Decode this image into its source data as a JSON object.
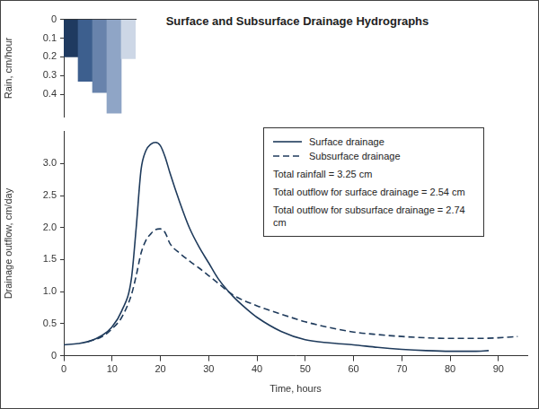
{
  "chart_data": [
    {
      "type": "bar",
      "y_label": "Rain, cm/hour",
      "categories": [
        null,
        null,
        null,
        null,
        null
      ],
      "values": [
        0.2,
        0.33,
        0.39,
        0.5,
        0.21
      ],
      "colors": [
        "#1f3a60",
        "#3d5f8e",
        "#6883ac",
        "#8fa5c6",
        "#cdd7e6"
      ],
      "ylim": [
        0,
        0.52
      ],
      "yticks": [
        0,
        0.1,
        0.2,
        0.3,
        0.4
      ],
      "grid": false,
      "tick_labels": "y"
    },
    {
      "type": "line",
      "title": "Surface and Subsurface Drainage Hydrographs",
      "x_label": "Time, hours",
      "y_label": "Drainage outflow, cm/day",
      "series": [
        {
          "name": "Surface drainage",
          "color": "#1f3b5c",
          "line_style": "solid",
          "x": [
            0,
            3,
            5,
            8,
            10,
            12,
            14,
            15,
            16,
            17,
            18,
            19,
            20,
            21,
            22,
            24,
            26,
            28,
            30,
            32,
            35,
            38,
            40,
            45,
            50,
            55,
            60,
            65,
            70,
            75,
            80,
            85,
            88
          ],
          "values": [
            0.17,
            0.19,
            0.22,
            0.32,
            0.45,
            0.7,
            1.2,
            2.0,
            2.9,
            3.2,
            3.3,
            3.33,
            3.28,
            3.1,
            2.85,
            2.4,
            2.0,
            1.7,
            1.45,
            1.2,
            0.93,
            0.72,
            0.6,
            0.38,
            0.25,
            0.2,
            0.17,
            0.13,
            0.1,
            0.08,
            0.07,
            0.07,
            0.08
          ]
        },
        {
          "name": "Subsurface drainage",
          "color": "#1f3b5c",
          "line_style": "dashed",
          "x": [
            5,
            8,
            10,
            12,
            14,
            15,
            16,
            17,
            18,
            19,
            20,
            21,
            22,
            24,
            26,
            28,
            30,
            32,
            35,
            40,
            45,
            50,
            55,
            60,
            65,
            70,
            75,
            80,
            85,
            90,
            94
          ],
          "values": [
            0.22,
            0.3,
            0.42,
            0.6,
            0.95,
            1.25,
            1.6,
            1.8,
            1.9,
            1.97,
            1.98,
            1.92,
            1.75,
            1.6,
            1.48,
            1.37,
            1.25,
            1.13,
            0.95,
            0.78,
            0.65,
            0.53,
            0.44,
            0.37,
            0.33,
            0.3,
            0.28,
            0.27,
            0.27,
            0.28,
            0.3
          ]
        }
      ],
      "annotations": [
        "Total rainfall = 3.25 cm",
        "Total outflow for surface drainage = 2.54 cm",
        "Total outflow for subsurface drainage = 2.74 cm"
      ],
      "legend": "upper right",
      "xlim": [
        0,
        96
      ],
      "xticks": [
        0,
        10,
        20,
        30,
        40,
        50,
        60,
        70,
        80,
        90
      ],
      "ylim": [
        0,
        3.5
      ],
      "yticks": [
        0,
        0.5,
        {
          "value": 1,
          "label": "1.0"
        },
        1.5,
        {
          "value": 2,
          "label": "2.0"
        },
        2.5,
        {
          "value": 3,
          "label": "3.0"
        }
      ],
      "grid": false
    }
  ]
}
